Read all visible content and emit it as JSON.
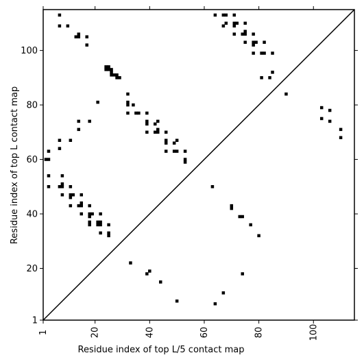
{
  "chart_data": {
    "type": "scatter",
    "title": "",
    "xlabel": "Residue index of top L/5 contact map",
    "ylabel": "Residue index of top L contact map",
    "xlim": [
      1,
      115
    ],
    "ylim": [
      1,
      115
    ],
    "xticks": [
      1,
      20,
      40,
      60,
      80,
      100
    ],
    "yticks": [
      1,
      20,
      40,
      60,
      80,
      100
    ],
    "xtick_labels": [
      "1",
      "20",
      "40",
      "60",
      "80",
      "100"
    ],
    "ytick_labels": [
      "1",
      "20",
      "40",
      "60",
      "80",
      "100"
    ],
    "diagonal": true,
    "grid": false,
    "marker_color": "#000000",
    "series": [
      {
        "points": [
          [
            7,
            113
          ],
          [
            7,
            109
          ],
          [
            10,
            109
          ],
          [
            13,
            105
          ],
          [
            14,
            106
          ],
          [
            14,
            105
          ],
          [
            17,
            105
          ],
          [
            17,
            102
          ],
          [
            24,
            94
          ],
          [
            24,
            93
          ],
          [
            25,
            94
          ],
          [
            25,
            93
          ],
          [
            26,
            93
          ],
          [
            26,
            92
          ],
          [
            26,
            91
          ],
          [
            27,
            91
          ],
          [
            28,
            91
          ],
          [
            28,
            90
          ],
          [
            29,
            90
          ],
          [
            21,
            81
          ],
          [
            32,
            84
          ],
          [
            32,
            81
          ],
          [
            32,
            80
          ],
          [
            32,
            77
          ],
          [
            34,
            80
          ],
          [
            35,
            77
          ],
          [
            36,
            77
          ],
          [
            39,
            77
          ],
          [
            39,
            74
          ],
          [
            39,
            73
          ],
          [
            39,
            70
          ],
          [
            42,
            73
          ],
          [
            43,
            74
          ],
          [
            42,
            70
          ],
          [
            43,
            71
          ],
          [
            43,
            70
          ],
          [
            46,
            70
          ],
          [
            46,
            67
          ],
          [
            46,
            66
          ],
          [
            46,
            63
          ],
          [
            49,
            66
          ],
          [
            49,
            63
          ],
          [
            50,
            67
          ],
          [
            50,
            63
          ],
          [
            53,
            63
          ],
          [
            53,
            60
          ],
          [
            53,
            59
          ],
          [
            14,
            74
          ],
          [
            14,
            71
          ],
          [
            18,
            74
          ],
          [
            7,
            67
          ],
          [
            7,
            64
          ],
          [
            11,
            67
          ],
          [
            3,
            63
          ],
          [
            2,
            60
          ],
          [
            3,
            60
          ],
          [
            3,
            54
          ],
          [
            8,
            54
          ],
          [
            3,
            50
          ],
          [
            7,
            50
          ],
          [
            8,
            51
          ],
          [
            8,
            50
          ],
          [
            11,
            50
          ],
          [
            11,
            47
          ],
          [
            11,
            46
          ],
          [
            12,
            47
          ],
          [
            8,
            47
          ],
          [
            11,
            43
          ],
          [
            14,
            43
          ],
          [
            15,
            44
          ],
          [
            15,
            43
          ],
          [
            15,
            47
          ],
          [
            15,
            40
          ],
          [
            18,
            43
          ],
          [
            18,
            40
          ],
          [
            18,
            39
          ],
          [
            19,
            40
          ],
          [
            18,
            37
          ],
          [
            18,
            36
          ],
          [
            21,
            37
          ],
          [
            21,
            36
          ],
          [
            22,
            40
          ],
          [
            22,
            37
          ],
          [
            22,
            36
          ],
          [
            25,
            36
          ],
          [
            25,
            33
          ],
          [
            25,
            32
          ],
          [
            22,
            33
          ],
          [
            64,
            113
          ],
          [
            67,
            113
          ],
          [
            68,
            113
          ],
          [
            68,
            110
          ],
          [
            67,
            109
          ],
          [
            71,
            113
          ],
          [
            71,
            110
          ],
          [
            71,
            109
          ],
          [
            72,
            110
          ],
          [
            71,
            106
          ],
          [
            74,
            106
          ],
          [
            75,
            107
          ],
          [
            75,
            106
          ],
          [
            75,
            110
          ],
          [
            75,
            103
          ],
          [
            78,
            106
          ],
          [
            78,
            103
          ],
          [
            78,
            102
          ],
          [
            79,
            103
          ],
          [
            78,
            99
          ],
          [
            81,
            99
          ],
          [
            82,
            99
          ],
          [
            82,
            103
          ],
          [
            85,
            99
          ],
          [
            85,
            92
          ],
          [
            81,
            90
          ],
          [
            84,
            90
          ],
          [
            90,
            84
          ],
          [
            103,
            79
          ],
          [
            106,
            78
          ],
          [
            103,
            75
          ],
          [
            106,
            74
          ],
          [
            110,
            71
          ],
          [
            110,
            68
          ],
          [
            63,
            50
          ],
          [
            70,
            43
          ],
          [
            70,
            42
          ],
          [
            73,
            39
          ],
          [
            74,
            39
          ],
          [
            77,
            36
          ],
          [
            80,
            32
          ],
          [
            33,
            22
          ],
          [
            39,
            18
          ],
          [
            40,
            19
          ],
          [
            44,
            15
          ],
          [
            50,
            8
          ],
          [
            64,
            7
          ],
          [
            67,
            11
          ],
          [
            74,
            18
          ]
        ]
      }
    ]
  }
}
